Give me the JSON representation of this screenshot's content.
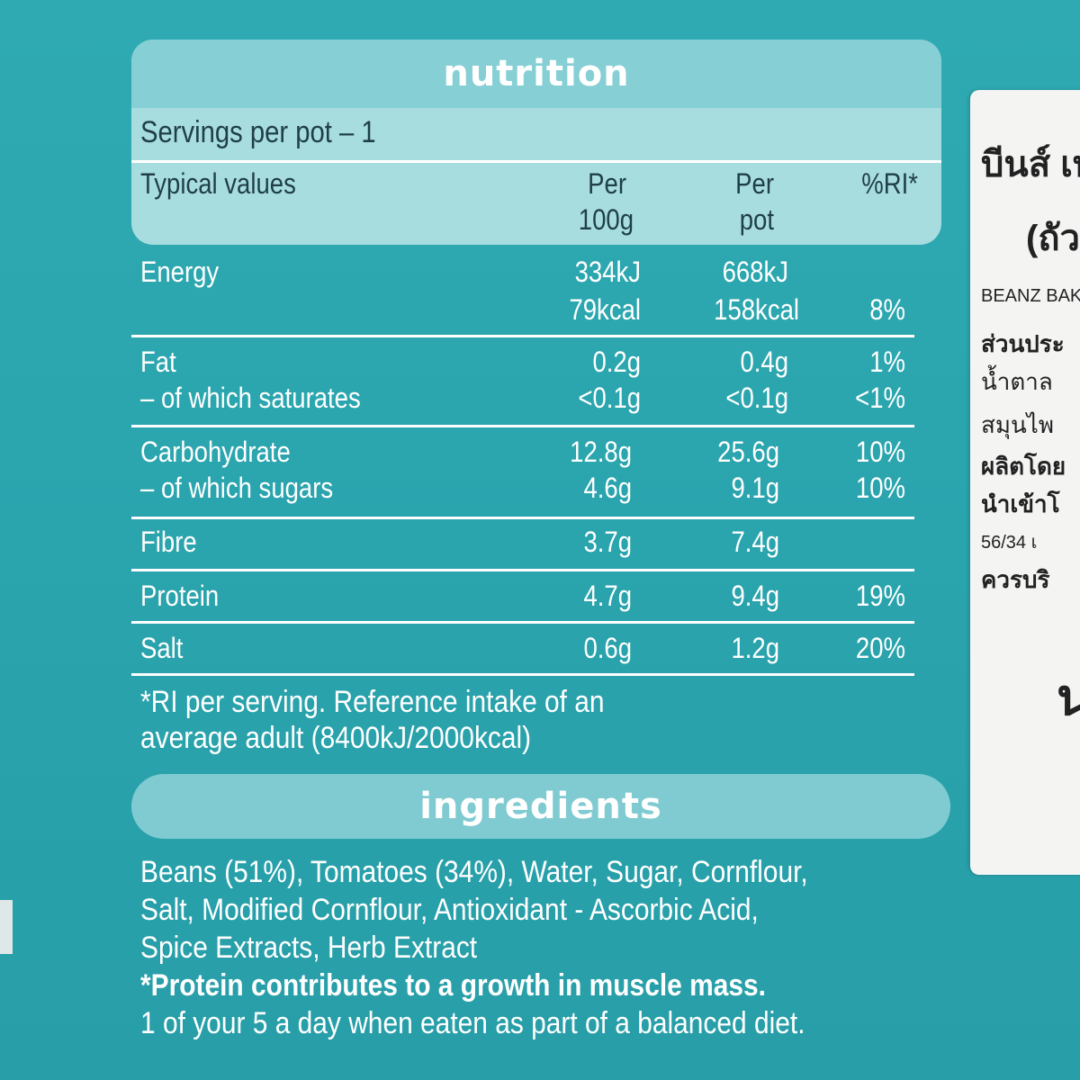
{
  "nutrition": {
    "title": "nutrition",
    "servings": "Servings per pot – 1",
    "headers": {
      "label": "Typical values",
      "per100_line1": "Per",
      "per100_line2": "100g",
      "perpot_line1": "Per",
      "perpot_line2": "pot",
      "ri": "%RI*"
    },
    "rows": [
      {
        "label": "Energy",
        "per100_a": "334kJ",
        "per100_b": "79kcal",
        "perpot_a": "668kJ",
        "perpot_b": "158kcal",
        "ri": "8%"
      },
      {
        "label": "Fat",
        "sub_label": "– of which saturates",
        "per100_a": "0.2g",
        "per100_b": "<0.1g",
        "perpot_a": "0.4g",
        "perpot_b": "<0.1g",
        "ri_a": "1%",
        "ri_b": "<1%"
      },
      {
        "label": "Carbohydrate",
        "sub_label": "– of which sugars",
        "per100_a": "12.8g",
        "per100_b": "4.6g",
        "perpot_a": "25.6g",
        "perpot_b": "9.1g",
        "ri_a": "10%",
        "ri_b": "10%"
      },
      {
        "label": "Fibre",
        "per100": "3.7g",
        "perpot": "7.4g",
        "ri": ""
      },
      {
        "label": "Protein",
        "per100": "4.7g",
        "perpot": "9.4g",
        "ri": "19%"
      },
      {
        "label": "Salt",
        "per100": "0.6g",
        "perpot": "1.2g",
        "ri": "20%"
      }
    ],
    "footnote_line1": "*RI per serving. Reference intake of an",
    "footnote_line2": "average adult (8400kJ/2000kcal)"
  },
  "ingredients": {
    "title": "ingredients",
    "line1": "Beans (51%), Tomatoes (34%), Water, Sugar, Cornflour,",
    "line2": "Salt, Modified Cornflour, Antioxidant - Ascorbic Acid,",
    "line3": "Spice Extracts, Herb Extract",
    "claim": "*Protein contributes to a growth in muscle mass.",
    "five_a_day": "1 of your 5 a day when eaten as part of a balanced diet."
  },
  "thai_label": {
    "line1": "บีนส์ เบ",
    "line2": "(ถัว",
    "line3": "BEANZ BAK",
    "line4": "ส่วนประ",
    "line5": "น้ำตาล",
    "line6": "สมุนไพ",
    "line7": "ผลิตโดย",
    "line8": "นำเข้าโ",
    "line9": "56/34 เ",
    "line10": "ควรบริ",
    "line11": "น"
  }
}
